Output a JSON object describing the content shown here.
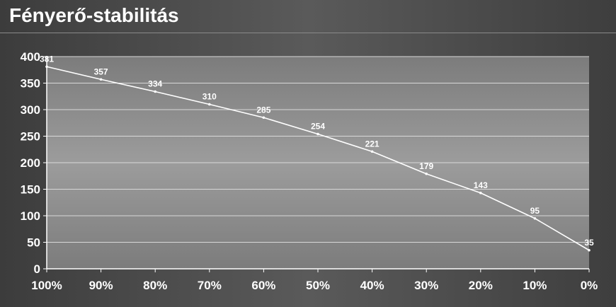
{
  "chart_title": "Fényerő-stabilitás",
  "colors": {
    "line": "#ffffff",
    "grid": "#d8d8d8",
    "axis": "#ffffff",
    "tick_text": "#ffffff",
    "plot_bg_edge": "#7c7c7c",
    "plot_bg_center": "#9c9c9c"
  },
  "chart_data": {
    "type": "line",
    "title": "Fényerő-stabilitás",
    "xlabel": "",
    "ylabel": "",
    "categories": [
      "100%",
      "90%",
      "80%",
      "70%",
      "60%",
      "50%",
      "40%",
      "30%",
      "20%",
      "10%",
      "0%"
    ],
    "series": [
      {
        "values": [
          381,
          357,
          334,
          310,
          285,
          254,
          221,
          179,
          143,
          95,
          35
        ]
      }
    ],
    "data_labels": [
      "381",
      "357",
      "334",
      "310",
      "285",
      "254",
      "221",
      "179",
      "143",
      "95",
      "35"
    ],
    "ylim": [
      0,
      400
    ],
    "yticks": [
      0,
      50,
      100,
      150,
      200,
      250,
      300,
      350,
      400
    ],
    "ytick_labels": [
      "0",
      "50",
      "100",
      "150",
      "200",
      "250",
      "300",
      "350",
      "400"
    ],
    "grid": true,
    "legend": "none"
  }
}
